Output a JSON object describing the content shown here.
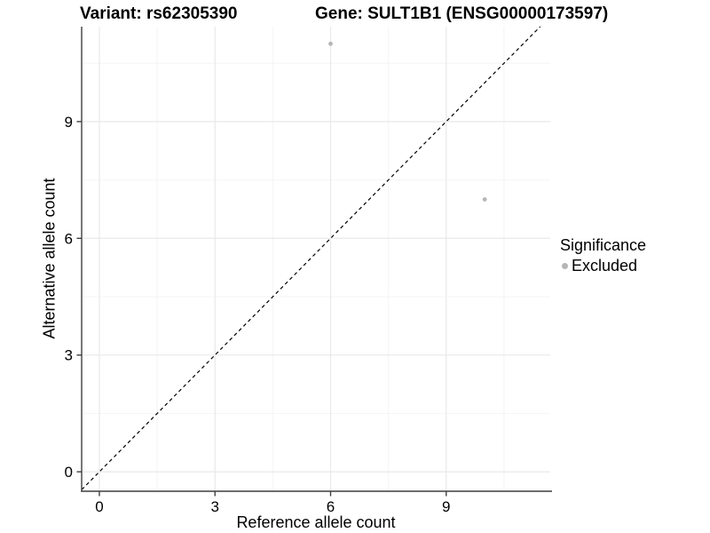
{
  "titles": {
    "variant": "Variant: rs62305390",
    "gene": "Gene: SULT1B1 (ENSG00000173597)"
  },
  "legend": {
    "title": "Significance",
    "items": [
      {
        "label": "Excluded",
        "color": "#b5b5b5"
      }
    ]
  },
  "chart_data": {
    "type": "scatter",
    "xlabel": "Reference allele count",
    "ylabel": "Alternative allele count",
    "x_ticks": [
      0,
      3,
      6,
      9
    ],
    "y_ticks": [
      0,
      3,
      6,
      9
    ],
    "xlim": [
      -0.46,
      11.7
    ],
    "ylim": [
      -0.5,
      11.44
    ],
    "grid": "major+minor",
    "identity_line": {
      "style": "dashed",
      "equation": "y = x",
      "color": "#000000"
    },
    "series": [
      {
        "name": "Excluded",
        "color": "#b5b5b5",
        "points": [
          {
            "x": 6,
            "y": 11
          },
          {
            "x": 10,
            "y": 7
          }
        ]
      }
    ],
    "colors": {
      "grid_major": "#e9e9e9",
      "grid_minor": "#f4f4f4",
      "axis": "#3f3f3f",
      "tick_label": "#000000"
    },
    "legend_position": "right"
  }
}
